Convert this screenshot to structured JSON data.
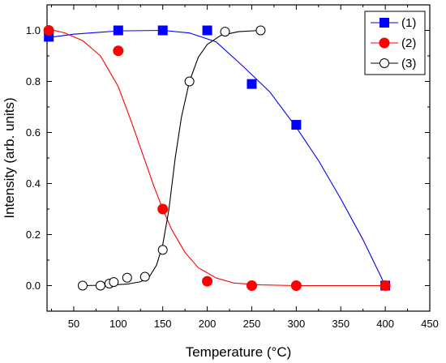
{
  "chart_data": {
    "type": "scatter",
    "xlabel": "Temperature (°C)",
    "ylabel": "Intensity (arb. units)",
    "xlim": [
      20,
      450
    ],
    "ylim": [
      -0.1,
      1.1
    ],
    "xticks": [
      50,
      100,
      150,
      200,
      250,
      300,
      350,
      400,
      450
    ],
    "yticks": [
      0.0,
      0.2,
      0.4,
      0.6,
      0.8,
      1.0
    ],
    "ytick_labels": [
      "0.0",
      "0.2",
      "0.4",
      "0.6",
      "0.8",
      "1.0"
    ],
    "grid": false,
    "legend_position": "top-right",
    "series": [
      {
        "name": "(1)",
        "color": "#0000ff",
        "marker": "filled-square",
        "points": [
          [
            22,
            0.975
          ],
          [
            100,
            1.0
          ],
          [
            150,
            1.0
          ],
          [
            200,
            1.0
          ],
          [
            250,
            0.79
          ],
          [
            300,
            0.63
          ],
          [
            400,
            0.0
          ]
        ],
        "fit": [
          [
            22,
            0.972
          ],
          [
            50,
            0.985
          ],
          [
            100,
            0.998
          ],
          [
            150,
            1.0
          ],
          [
            180,
            0.99
          ],
          [
            210,
            0.955
          ],
          [
            240,
            0.86
          ],
          [
            270,
            0.76
          ],
          [
            300,
            0.62
          ],
          [
            325,
            0.49
          ],
          [
            350,
            0.34
          ],
          [
            375,
            0.18
          ],
          [
            400,
            0.0
          ]
        ]
      },
      {
        "name": "(2)",
        "color": "#ff0000",
        "marker": "filled-circle",
        "points": [
          [
            22,
            1.0
          ],
          [
            100,
            0.92
          ],
          [
            150,
            0.3
          ],
          [
            200,
            0.017
          ],
          [
            250,
            0.0
          ],
          [
            300,
            0.0
          ],
          [
            400,
            0.0
          ]
        ],
        "fit": [
          [
            22,
            1.005
          ],
          [
            40,
            0.99
          ],
          [
            60,
            0.96
          ],
          [
            80,
            0.9
          ],
          [
            100,
            0.78
          ],
          [
            115,
            0.64
          ],
          [
            130,
            0.49
          ],
          [
            140,
            0.39
          ],
          [
            150,
            0.3
          ],
          [
            160,
            0.22
          ],
          [
            175,
            0.13
          ],
          [
            190,
            0.07
          ],
          [
            210,
            0.03
          ],
          [
            230,
            0.01
          ],
          [
            260,
            0.003
          ],
          [
            300,
            0.0
          ],
          [
            400,
            0.0
          ]
        ]
      },
      {
        "name": "(3)",
        "color": "#000000",
        "marker": "open-circle",
        "points": [
          [
            60,
            0.0
          ],
          [
            80,
            0.0
          ],
          [
            90,
            0.008
          ],
          [
            95,
            0.014
          ],
          [
            110,
            0.031
          ],
          [
            130,
            0.035
          ],
          [
            150,
            0.14
          ],
          [
            180,
            0.8
          ],
          [
            220,
            0.995
          ],
          [
            260,
            1.0
          ]
        ],
        "fit": [
          [
            60,
            0.0
          ],
          [
            90,
            0.002
          ],
          [
            110,
            0.006
          ],
          [
            125,
            0.015
          ],
          [
            135,
            0.035
          ],
          [
            143,
            0.08
          ],
          [
            150,
            0.16
          ],
          [
            157,
            0.3
          ],
          [
            164,
            0.5
          ],
          [
            171,
            0.66
          ],
          [
            180,
            0.8
          ],
          [
            190,
            0.895
          ],
          [
            200,
            0.945
          ],
          [
            215,
            0.98
          ],
          [
            235,
            0.995
          ],
          [
            260,
            1.0
          ]
        ]
      }
    ]
  }
}
